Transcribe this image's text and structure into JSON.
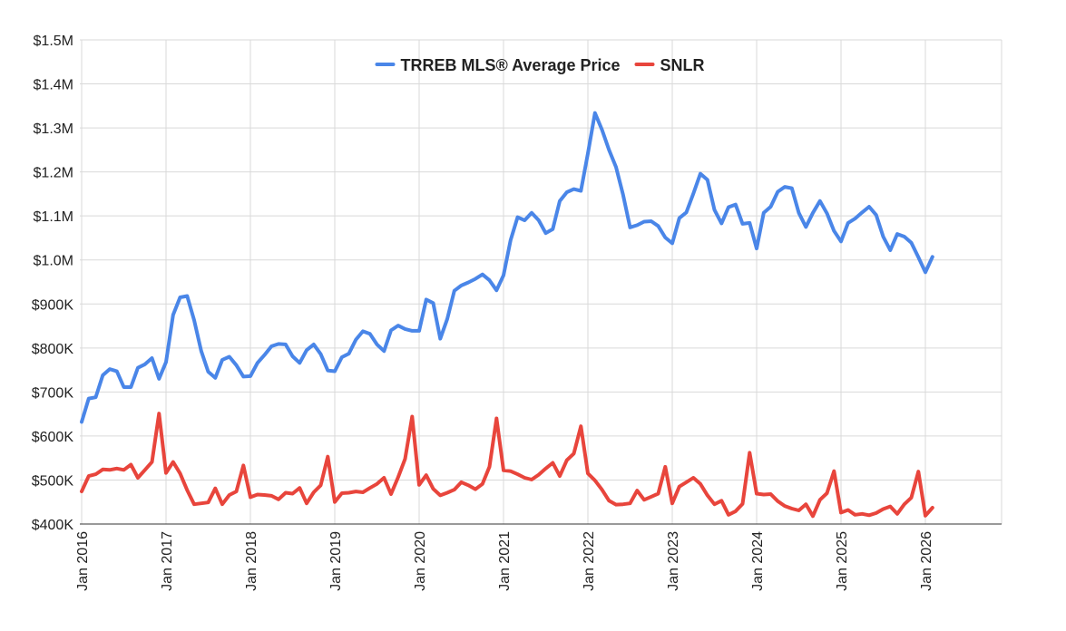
{
  "chart_data": {
    "type": "line",
    "title": "",
    "xlabel": "",
    "ylabel": "",
    "ylim": [
      400000,
      1500000
    ],
    "yticks": [
      {
        "value": 1500000,
        "label": "$1.5M"
      },
      {
        "value": 1400000,
        "label": "$1.4M"
      },
      {
        "value": 1300000,
        "label": "$1.3M"
      },
      {
        "value": 1200000,
        "label": "$1.2M"
      },
      {
        "value": 1100000,
        "label": "$1.1M"
      },
      {
        "value": 1000000,
        "label": "$1.0M"
      },
      {
        "value": 900000,
        "label": "$900K"
      },
      {
        "value": 800000,
        "label": "$800K"
      },
      {
        "value": 700000,
        "label": "$700K"
      },
      {
        "value": 600000,
        "label": "$600K"
      },
      {
        "value": 500000,
        "label": "$500K"
      },
      {
        "value": 400000,
        "label": "$400K"
      }
    ],
    "xticks": [
      {
        "month": 0,
        "label": "Jan 2016"
      },
      {
        "month": 12,
        "label": "Jan 2017"
      },
      {
        "month": 24,
        "label": "Jan 2018"
      },
      {
        "month": 36,
        "label": "Jan 2019"
      },
      {
        "month": 48,
        "label": "Jan 2020"
      },
      {
        "month": 60,
        "label": "Jan 2021"
      },
      {
        "month": 72,
        "label": "Jan 2022"
      },
      {
        "month": 84,
        "label": "Jan 2023"
      },
      {
        "month": 96,
        "label": "Jan 2024"
      },
      {
        "month": 108,
        "label": "Jan 2025"
      },
      {
        "month": 120,
        "label": "Jan 2026"
      }
    ],
    "x_start": "Jan 2016",
    "x_end": "Feb 2026",
    "grid": true,
    "legend_position": "top",
    "series": [
      {
        "name": "TRREB MLS® Average Price",
        "color": "#4a86e8",
        "values": [
          632000,
          685000,
          688000,
          738000,
          752000,
          747000,
          711000,
          711000,
          755000,
          763000,
          777000,
          730000,
          768000,
          875000,
          915000,
          918000,
          863000,
          793000,
          746000,
          732000,
          773000,
          780000,
          761000,
          735000,
          736000,
          766000,
          784000,
          804000,
          809000,
          808000,
          781000,
          766000,
          795000,
          808000,
          786000,
          749000,
          747000,
          779000,
          787000,
          819000,
          838000,
          832000,
          808000,
          793000,
          840000,
          851000,
          843000,
          839000,
          839000,
          910000,
          902000,
          821000,
          866000,
          930000,
          942000,
          949000,
          957000,
          967000,
          954000,
          931000,
          965000,
          1045000,
          1097000,
          1090000,
          1107000,
          1090000,
          1061000,
          1070000,
          1134000,
          1154000,
          1161000,
          1157000,
          1242000,
          1334000,
          1296000,
          1250000,
          1211000,
          1148000,
          1074000,
          1079000,
          1087000,
          1088000,
          1077000,
          1051000,
          1038000,
          1095000,
          1108000,
          1151000,
          1196000,
          1182000,
          1114000,
          1083000,
          1120000,
          1126000,
          1082000,
          1084000,
          1026000,
          1107000,
          1121000,
          1155000,
          1166000,
          1163000,
          1107000,
          1075000,
          1107000,
          1134000,
          1106000,
          1066000,
          1042000,
          1084000,
          1094000,
          1108000,
          1121000,
          1102000,
          1053000,
          1022000,
          1059000,
          1053000,
          1039000,
          1006000,
          972000,
          1007000
        ]
      },
      {
        "name": "SNLR",
        "color": "#e8453c",
        "values": [
          474000,
          509000,
          513000,
          524000,
          523000,
          526000,
          523000,
          535000,
          505000,
          523000,
          541000,
          651000,
          516000,
          541000,
          515000,
          477000,
          445000,
          447000,
          449000,
          481000,
          445000,
          466000,
          474000,
          533000,
          461000,
          467000,
          466000,
          464000,
          456000,
          471000,
          469000,
          482000,
          447000,
          472000,
          488000,
          553000,
          450000,
          470000,
          471000,
          474000,
          472000,
          482000,
          491000,
          505000,
          468000,
          506000,
          548000,
          644000,
          489000,
          511000,
          480000,
          465000,
          471000,
          478000,
          495000,
          488000,
          479000,
          491000,
          530000,
          640000,
          522000,
          520000,
          513000,
          505000,
          501000,
          512000,
          526000,
          539000,
          509000,
          545000,
          560000,
          622000,
          515000,
          499000,
          478000,
          453000,
          444000,
          445000,
          447000,
          476000,
          455000,
          462000,
          469000,
          530000,
          447000,
          485000,
          495000,
          505000,
          491000,
          465000,
          445000,
          453000,
          421000,
          429000,
          446000,
          562000,
          469000,
          467000,
          468000,
          452000,
          441000,
          435000,
          431000,
          445000,
          418000,
          455000,
          470000,
          520000,
          426000,
          432000,
          421000,
          423000,
          420000,
          425000,
          434000,
          440000,
          423000,
          445000,
          460000,
          519000,
          419000,
          437000
        ]
      }
    ]
  }
}
